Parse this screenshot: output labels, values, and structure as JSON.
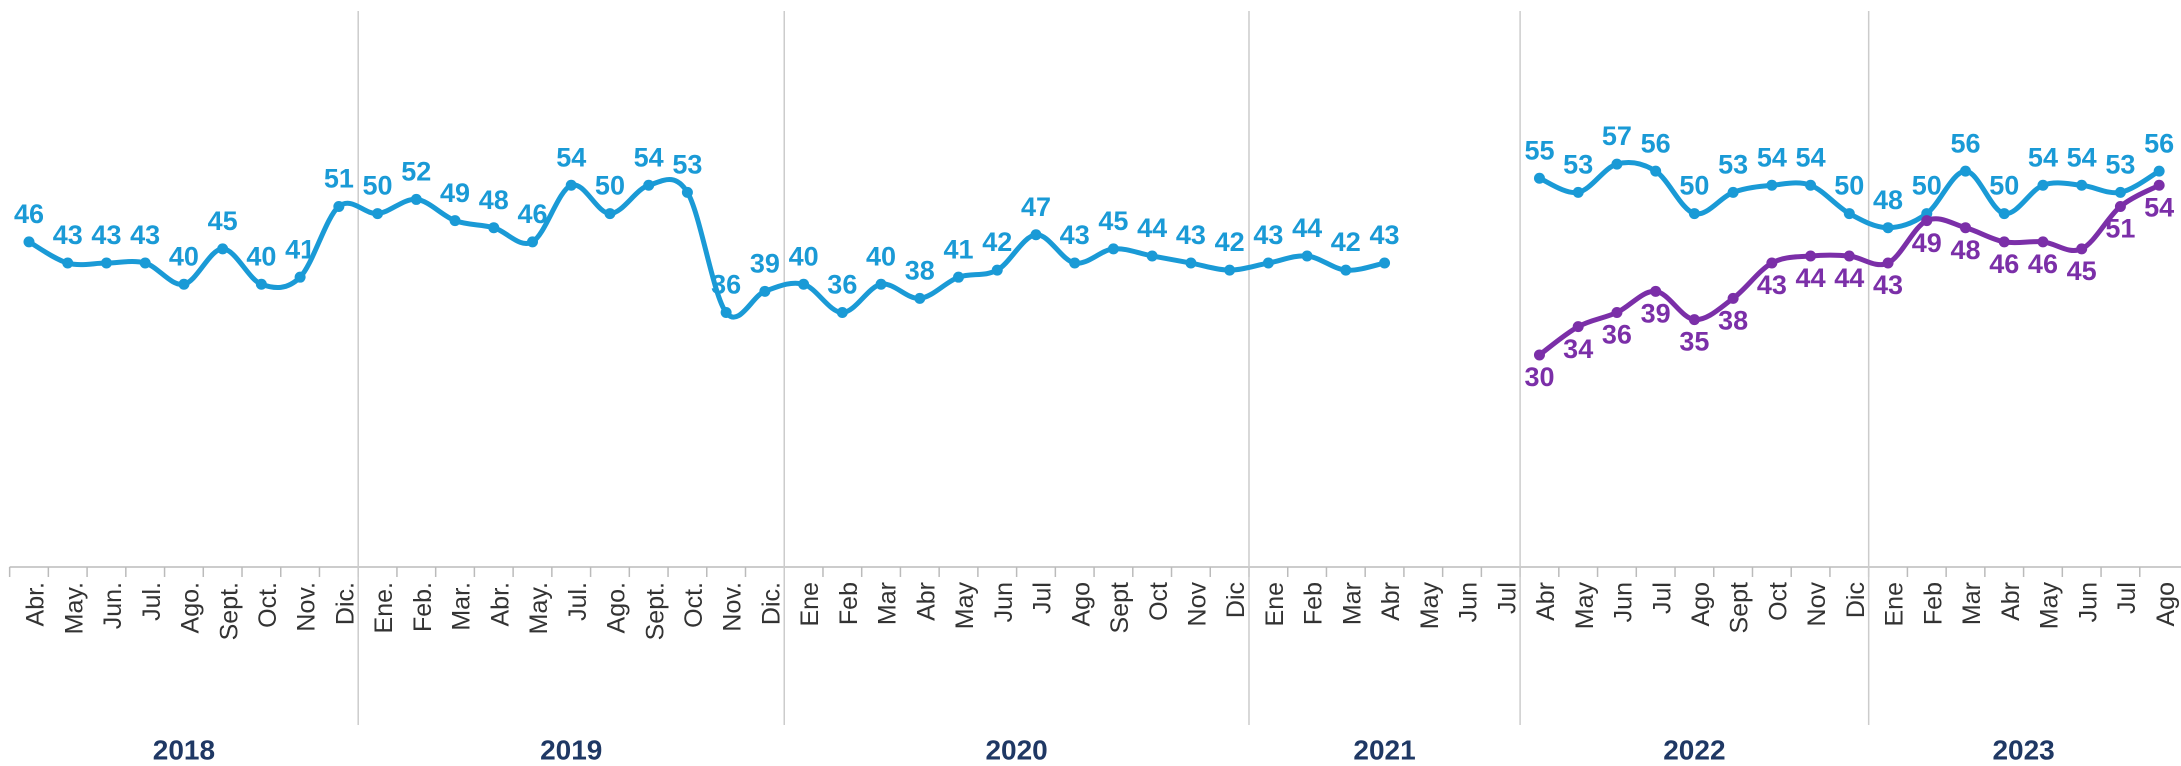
{
  "chart_data": {
    "type": "line",
    "categories": [
      "Abr.",
      "May.",
      "Jun.",
      "Jul.",
      "Ago.",
      "Sept.",
      "Oct.",
      "Nov.",
      "Dic.",
      "Ene.",
      "Feb.",
      "Mar.",
      "Abr.",
      "May.",
      "Jul.",
      "Ago.",
      "Sept.",
      "Oct.",
      "Nov.",
      "Dic.",
      "Ene",
      "Feb",
      "Mar",
      "Abr",
      "May",
      "Jun",
      "Jul",
      "Ago",
      "Sept",
      "Oct",
      "Nov",
      "Dic",
      "Ene",
      "Feb",
      "Mar",
      "Abr",
      "May",
      "Jun",
      "Jul",
      "Abr",
      "May",
      "Jun",
      "Jul",
      "Ago",
      "Sept",
      "Oct",
      "Nov",
      "Dic",
      "Ene",
      "Feb",
      "Mar",
      "Abr",
      "May",
      "Jun",
      "Jul",
      "Ago"
    ],
    "x_groups": [
      {
        "label": "2018",
        "size": 9
      },
      {
        "label": "2019",
        "size": 11
      },
      {
        "label": "2020",
        "size": 12
      },
      {
        "label": "2021",
        "size": 7
      },
      {
        "label": "2022",
        "size": 9
      },
      {
        "label": "2023",
        "size": 8
      }
    ],
    "series": [
      {
        "color": "#1a9ad6",
        "label_position": "above",
        "values": [
          46,
          43,
          43,
          43,
          40,
          45,
          40,
          41,
          51,
          50,
          52,
          49,
          48,
          46,
          54,
          50,
          54,
          53,
          36,
          39,
          40,
          36,
          40,
          38,
          41,
          42,
          47,
          43,
          45,
          44,
          43,
          42,
          43,
          44,
          42,
          43,
          null,
          null,
          null,
          55,
          53,
          57,
          56,
          50,
          53,
          54,
          54,
          50,
          48,
          50,
          56,
          50,
          54,
          54,
          53,
          56
        ]
      },
      {
        "color": "#7b2fa8",
        "label_position": "below",
        "values": [
          null,
          null,
          null,
          null,
          null,
          null,
          null,
          null,
          null,
          null,
          null,
          null,
          null,
          null,
          null,
          null,
          null,
          null,
          null,
          null,
          null,
          null,
          null,
          null,
          null,
          null,
          null,
          null,
          null,
          null,
          null,
          null,
          null,
          null,
          null,
          null,
          null,
          null,
          null,
          30,
          34,
          36,
          39,
          35,
          38,
          43,
          44,
          44,
          43,
          49,
          48,
          46,
          46,
          45,
          51,
          54
        ]
      }
    ],
    "ylim": [
      0,
      80
    ]
  }
}
